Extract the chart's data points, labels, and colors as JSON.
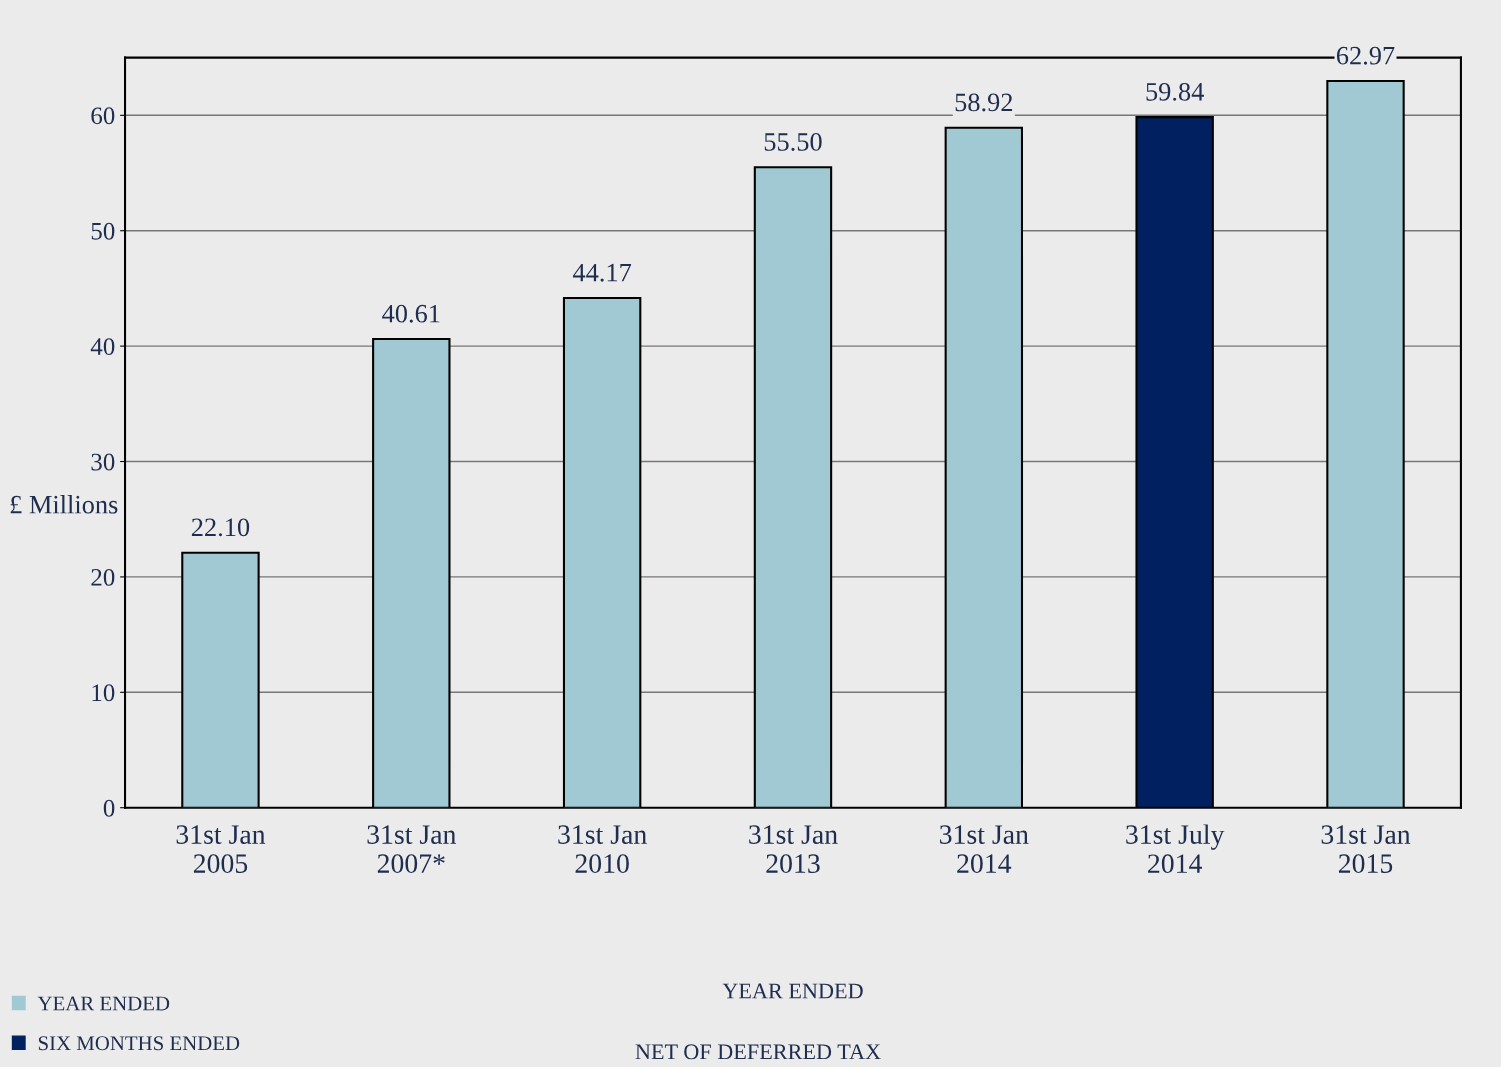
{
  "chart_data": {
    "type": "bar",
    "categories": [
      "31st Jan\n2005",
      "31st Jan\n2007*",
      "31st Jan\n2010",
      "31st Jan\n2013",
      "31st Jan\n2014",
      "31st July\n2014",
      "31st Jan\n2015"
    ],
    "series": [
      {
        "name": "YEAR ENDED",
        "color": "#a0c9d3",
        "values": [
          22.1,
          40.61,
          44.17,
          55.5,
          58.92,
          null,
          62.97
        ],
        "value_labels": [
          "22.10",
          "40.61",
          "44.17",
          "55.50",
          "58.92",
          null,
          "62.97"
        ]
      },
      {
        "name": "SIX MONTHS ENDED",
        "color": "#002060",
        "values": [
          null,
          null,
          null,
          null,
          null,
          59.84,
          null
        ],
        "value_labels": [
          null,
          null,
          null,
          null,
          null,
          "59.84",
          null
        ]
      }
    ],
    "ylabel": "£ Millions",
    "xlabel": "YEAR ENDED",
    "annotations": [
      "NET OF DEFERRED TAX"
    ],
    "ylim": [
      0,
      65
    ],
    "yticks": [
      0,
      10,
      20,
      30,
      40,
      50,
      60
    ],
    "grid": "y",
    "legend": "bottom left"
  }
}
